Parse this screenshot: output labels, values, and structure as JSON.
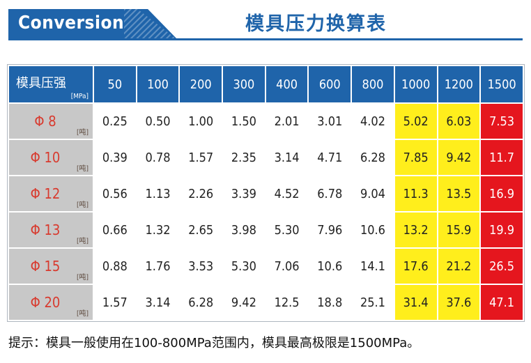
{
  "header": {
    "banner": "Conversion",
    "title": "模具压力换算表"
  },
  "table": {
    "corner_label": "模具压强",
    "corner_unit": "[MPa]",
    "row_unit": "[吨]",
    "columns": [
      "50",
      "100",
      "200",
      "300",
      "400",
      "600",
      "800",
      "1000",
      "1200",
      "1500"
    ],
    "rows": [
      {
        "label": "Φ 8",
        "values": [
          "0.25",
          "0.50",
          "1.00",
          "1.50",
          "2.01",
          "3.01",
          "4.02",
          "5.02",
          "6.03",
          "7.53"
        ]
      },
      {
        "label": "Φ 10",
        "values": [
          "0.39",
          "0.78",
          "1.57",
          "2.35",
          "3.14",
          "4.71",
          "6.28",
          "7.85",
          "9.42",
          "11.7"
        ]
      },
      {
        "label": "Φ 12",
        "values": [
          "0.56",
          "1.13",
          "2.26",
          "3.39",
          "4.52",
          "6.78",
          "9.04",
          "11.3",
          "13.5",
          "16.9"
        ]
      },
      {
        "label": "Φ 13",
        "values": [
          "0.66",
          "1.32",
          "2.65",
          "3.98",
          "5.30",
          "7.96",
          "10.6",
          "13.2",
          "15.9",
          "19.9"
        ]
      },
      {
        "label": "Φ 15",
        "values": [
          "0.88",
          "1.76",
          "3.53",
          "5.30",
          "7.06",
          "10.6",
          "14.1",
          "17.6",
          "21.2",
          "26.5"
        ]
      },
      {
        "label": "Φ 20",
        "values": [
          "1.57",
          "3.14",
          "6.28",
          "9.42",
          "12.5",
          "18.8",
          "25.1",
          "31.4",
          "37.6",
          "47.1"
        ]
      }
    ],
    "highlight": {
      "yellow_columns": [
        "1000",
        "1200"
      ],
      "red_columns": [
        "1500"
      ],
      "yellow_color": "#ffee1c",
      "red_color": "#e5161e",
      "header_color": "#1f64aa"
    }
  },
  "note": "提示：模具一般使用在100-800MPa范围内，模具最高极限是1500MPa。"
}
